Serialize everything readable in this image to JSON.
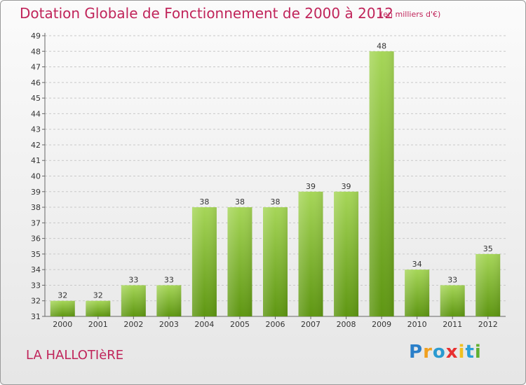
{
  "chart_data": {
    "type": "bar",
    "title": "Dotation Globale de Fonctionnement de 2000 à 2012",
    "subtitle": "(en milliers d'€)",
    "categories": [
      "2000",
      "2001",
      "2002",
      "2003",
      "2004",
      "2005",
      "2006",
      "2007",
      "2008",
      "2009",
      "2010",
      "2011",
      "2012"
    ],
    "values": [
      32,
      32,
      33,
      33,
      38,
      38,
      38,
      39,
      39,
      48,
      34,
      33,
      35
    ],
    "ylim": [
      31,
      49
    ],
    "yticks": [
      31,
      32,
      33,
      34,
      35,
      36,
      37,
      38,
      39,
      40,
      41,
      42,
      43,
      44,
      45,
      46,
      47,
      48,
      49
    ],
    "grid": true,
    "bar_color_top": "#a6d658",
    "bar_color_bottom": "#5e9612"
  },
  "footer": {
    "place": "LA HALLOTIèRE",
    "logo_letters": [
      {
        "ch": "P",
        "color": "#2a7fc9"
      },
      {
        "ch": "r",
        "color": "#f0a020"
      },
      {
        "ch": "o",
        "color": "#2a9ad0"
      },
      {
        "ch": "x",
        "color": "#e83030"
      },
      {
        "ch": "i",
        "color": "#f0c020"
      },
      {
        "ch": "t",
        "color": "#2aa0d8"
      },
      {
        "ch": "i",
        "color": "#60b030"
      }
    ]
  }
}
